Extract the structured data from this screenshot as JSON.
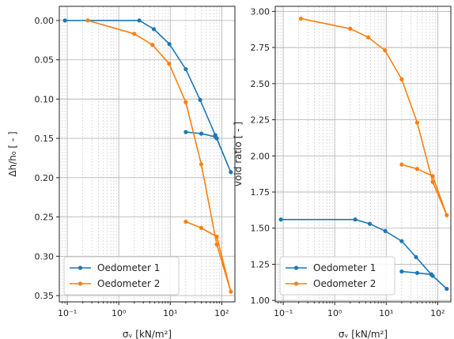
{
  "colors": {
    "series1": "#1f77b4",
    "series2": "#ff7f0e"
  },
  "chart_data": [
    {
      "type": "line",
      "xscale": "log",
      "ylabel": "Δh/h₀ [ - ]",
      "xlabel": "σᵥ [kN/m²]",
      "xlim": [
        0.07,
        180
      ],
      "ylim": [
        0.358,
        -0.018
      ],
      "y_inverted": true,
      "grid": true,
      "legend_position": "lower-left",
      "xticks": [
        "10⁻¹",
        "10⁰",
        "10¹",
        "10²"
      ],
      "yticks": [
        "0.00",
        "0.05",
        "0.10",
        "0.15",
        "0.20",
        "0.25",
        "0.30",
        "0.35"
      ],
      "series": [
        {
          "name": "Oedometer 1",
          "x": [
            0.09,
            2.5,
            4.8,
            9.6,
            20,
            38,
            75,
            150,
            80,
            75,
            40,
            20
          ],
          "y": [
            0.0,
            0.0,
            0.011,
            0.03,
            0.062,
            0.101,
            0.146,
            0.193,
            0.15,
            0.148,
            0.144,
            0.142
          ]
        },
        {
          "name": "Oedometer 2",
          "x": [
            0.25,
            2.0,
            4.5,
            9.5,
            20,
            40,
            80,
            150,
            80,
            40,
            20
          ],
          "y": [
            0.0,
            0.017,
            0.031,
            0.055,
            0.104,
            0.183,
            0.285,
            0.345,
            0.275,
            0.264,
            0.256
          ]
        }
      ]
    },
    {
      "type": "line",
      "xscale": "log",
      "ylabel": "void ratio [ - ]",
      "xlabel": "σᵥ [kN/m²]",
      "xlim": [
        0.07,
        180
      ],
      "ylim": [
        0.99,
        3.035
      ],
      "grid": true,
      "legend_position": "lower-left",
      "xticks": [
        "10⁻¹",
        "10⁰",
        "10¹",
        "10²"
      ],
      "yticks": [
        "1.00",
        "1.25",
        "1.50",
        "1.75",
        "2.00",
        "2.25",
        "2.50",
        "2.75",
        "3.00"
      ],
      "series": [
        {
          "name": "Oedometer 1",
          "x": [
            0.09,
            2.5,
            4.8,
            9.6,
            20,
            38,
            75,
            150,
            80,
            75,
            40,
            20
          ],
          "y": [
            1.56,
            1.56,
            1.53,
            1.48,
            1.41,
            1.3,
            1.18,
            1.08,
            1.17,
            1.18,
            1.19,
            1.2
          ]
        },
        {
          "name": "Oedometer 2",
          "x": [
            0.22,
            2.0,
            4.5,
            9.5,
            20,
            40,
            80,
            150,
            80,
            40,
            20
          ],
          "y": [
            2.95,
            2.88,
            2.82,
            2.73,
            2.53,
            2.23,
            1.82,
            1.59,
            1.86,
            1.91,
            1.94
          ]
        }
      ]
    }
  ]
}
